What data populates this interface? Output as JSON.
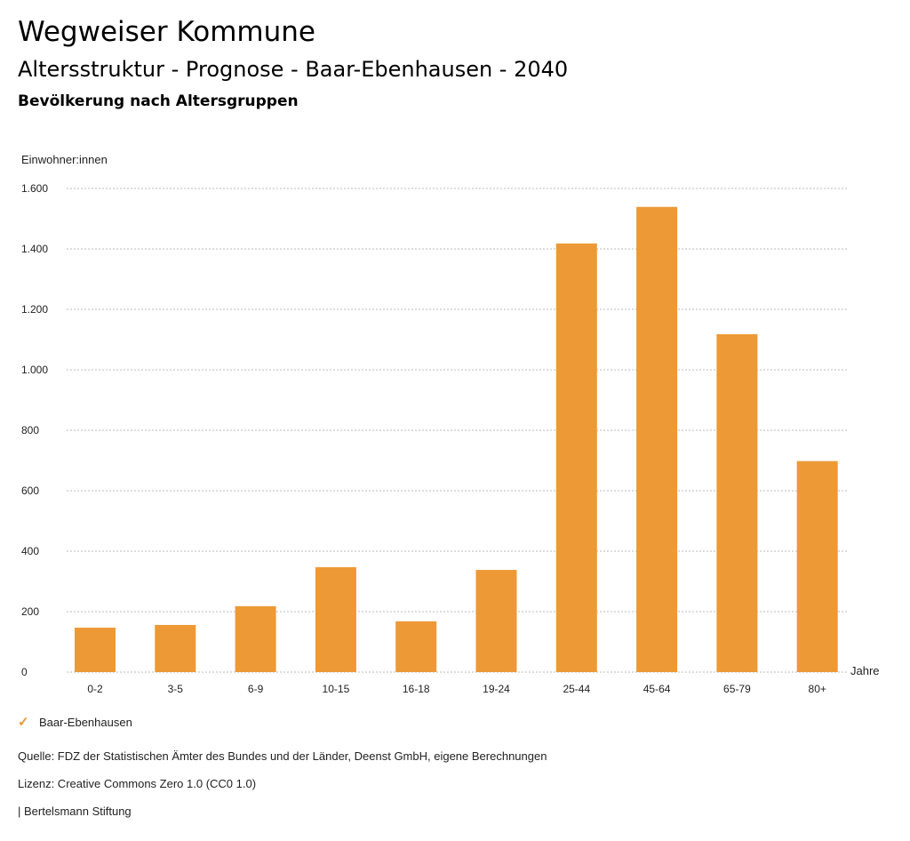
{
  "header": {
    "title": "Wegweiser Kommune",
    "subtitle": "Altersstruktur - Prognose - Baar-Ebenhausen - 2040",
    "chart_subtitle": "Bevölkerung nach Altersgruppen"
  },
  "chart_data": {
    "type": "bar",
    "title": "Bevölkerung nach Altersgruppen",
    "ylabel": "Einwohner:innen",
    "xlabel": "Jahre",
    "ylim": [
      0,
      1600
    ],
    "yticks": [
      0,
      200,
      400,
      600,
      800,
      1000,
      1200,
      1400,
      1600
    ],
    "ytick_labels": [
      "0",
      "200",
      "400",
      "600",
      "800",
      "1.000",
      "1.200",
      "1.400",
      "1.600"
    ],
    "grid": true,
    "categories": [
      "0-2",
      "3-5",
      "6-9",
      "10-15",
      "16-18",
      "19-24",
      "25-44",
      "45-64",
      "65-79",
      "80+"
    ],
    "series": [
      {
        "name": "Baar-Ebenhausen",
        "color": "#ed9936",
        "values": [
          147,
          156,
          218,
          347,
          168,
          338,
          1418,
          1539,
          1118,
          698
        ]
      }
    ],
    "legend_position": "bottom-left"
  },
  "legend": {
    "icon": "check-icon",
    "label": "Baar-Ebenhausen"
  },
  "footer": {
    "source": "Quelle: FDZ der Statistischen Ämter des Bundes und der Länder, Deenst GmbH, eigene Berechnungen",
    "license": "Lizenz: Creative Commons Zero 1.0 (CC0 1.0)",
    "publisher": "| Bertelsmann Stiftung"
  }
}
